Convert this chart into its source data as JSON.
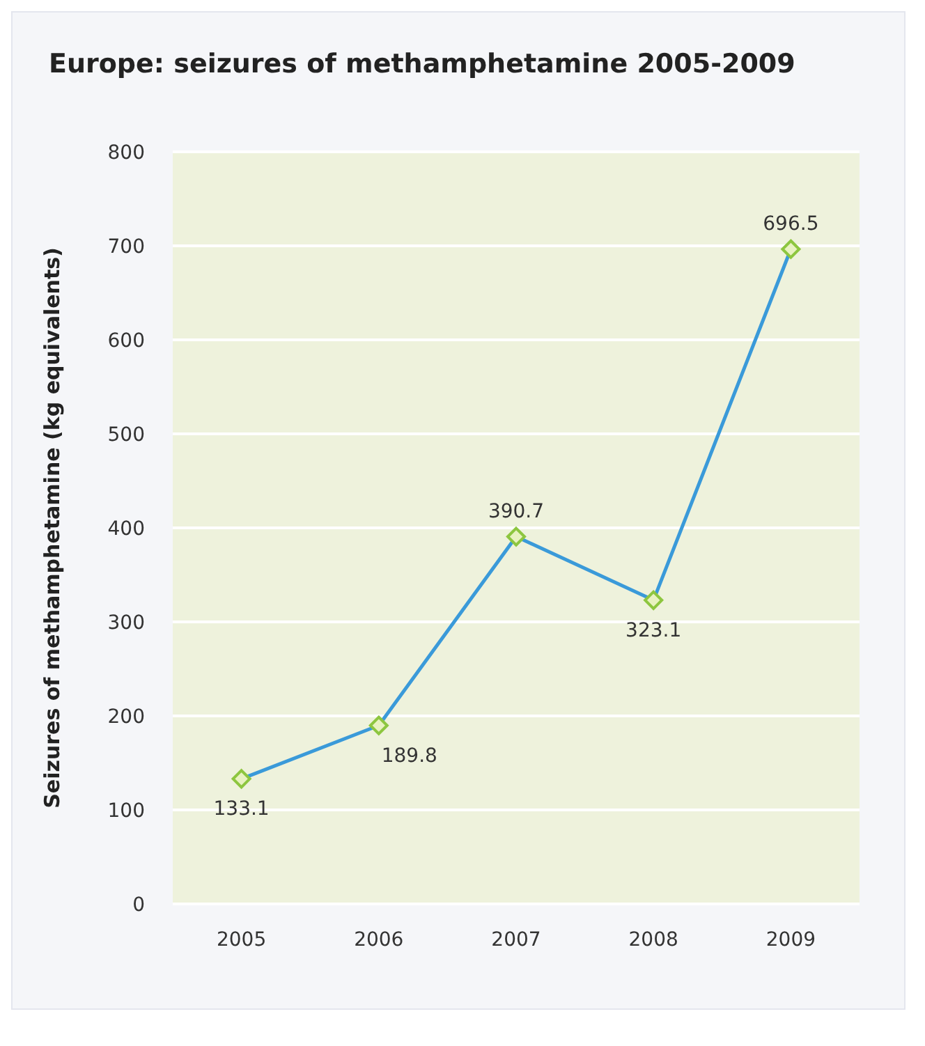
{
  "chart_data": {
    "type": "line",
    "title": "Europe: seizures of methamphetamine 2005-2009",
    "ylabel": "Seizures of methamphetamine (kg equivalents)",
    "categories": [
      "2005",
      "2006",
      "2007",
      "2008",
      "2009"
    ],
    "series": [
      {
        "color": "#3a9ad9",
        "values": [
          133.1,
          189.8,
          390.7,
          323.1,
          696.5
        ]
      }
    ],
    "ylim": [
      0,
      800
    ],
    "yticks": [
      0,
      100,
      200,
      300,
      400,
      500,
      600,
      700,
      800
    ],
    "grid": "y",
    "marker": "diamond",
    "data_labels": true
  }
}
